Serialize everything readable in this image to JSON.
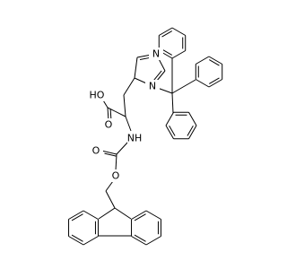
{
  "atoms": [
    "N",
    "N",
    "HO",
    "O",
    "NH",
    "O",
    "O"
  ]
}
